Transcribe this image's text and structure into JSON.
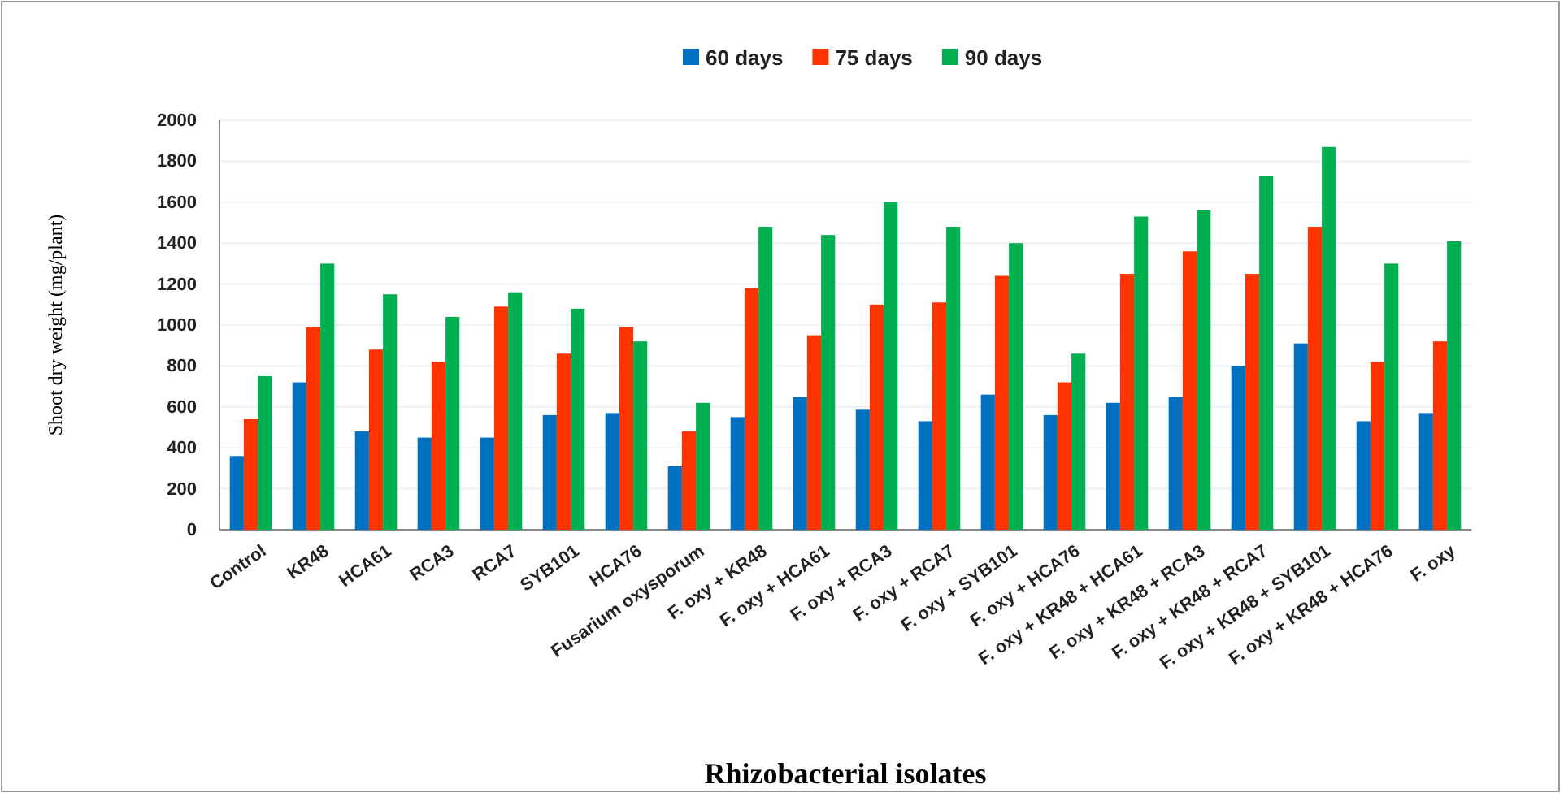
{
  "chart_data": {
    "type": "bar",
    "xlabel": "Rhizobacterial isolates",
    "ylabel": "Shoot dry weight (mg/plant)",
    "categories": [
      "Control",
      "KR48",
      "HCA61",
      "RCA3",
      "RCA7",
      "SYB101",
      "HCA76",
      "Fusarium oxysporum",
      "F. oxy + KR48",
      "F. oxy + HCA61",
      "F. oxy + RCA3",
      "F. oxy + RCA7",
      "F. oxy + SYB101",
      "F. oxy + HCA76",
      "F. oxy + KR48 + HCA61",
      "F. oxy + KR48 + RCA3",
      "F. oxy + KR48 + RCA7",
      "F. oxy + KR48 + SYB101",
      "F. oxy + KR48 + HCA76",
      "F. oxy"
    ],
    "series": [
      {
        "name": "60 days",
        "color": "#0070c0",
        "values": [
          360,
          720,
          480,
          450,
          450,
          560,
          570,
          310,
          550,
          650,
          590,
          530,
          660,
          560,
          620,
          650,
          800,
          910,
          530,
          570
        ]
      },
      {
        "name": "75 days",
        "color": "#ff3300",
        "values": [
          540,
          990,
          880,
          820,
          1090,
          860,
          990,
          480,
          1180,
          950,
          1100,
          1110,
          1240,
          720,
          1250,
          1360,
          1250,
          1480,
          820,
          920
        ]
      },
      {
        "name": "90 days",
        "color": "#00b050",
        "values": [
          750,
          1300,
          1150,
          1040,
          1160,
          1080,
          920,
          620,
          1480,
          1440,
          1600,
          1480,
          1400,
          860,
          1530,
          1560,
          1730,
          1870,
          1300,
          1410
        ]
      }
    ],
    "ylim": [
      0,
      2000
    ],
    "yticks": [
      0,
      200,
      400,
      600,
      800,
      1000,
      1200,
      1400,
      1600,
      1800,
      2000
    ],
    "grid": "y",
    "legend": "top"
  }
}
